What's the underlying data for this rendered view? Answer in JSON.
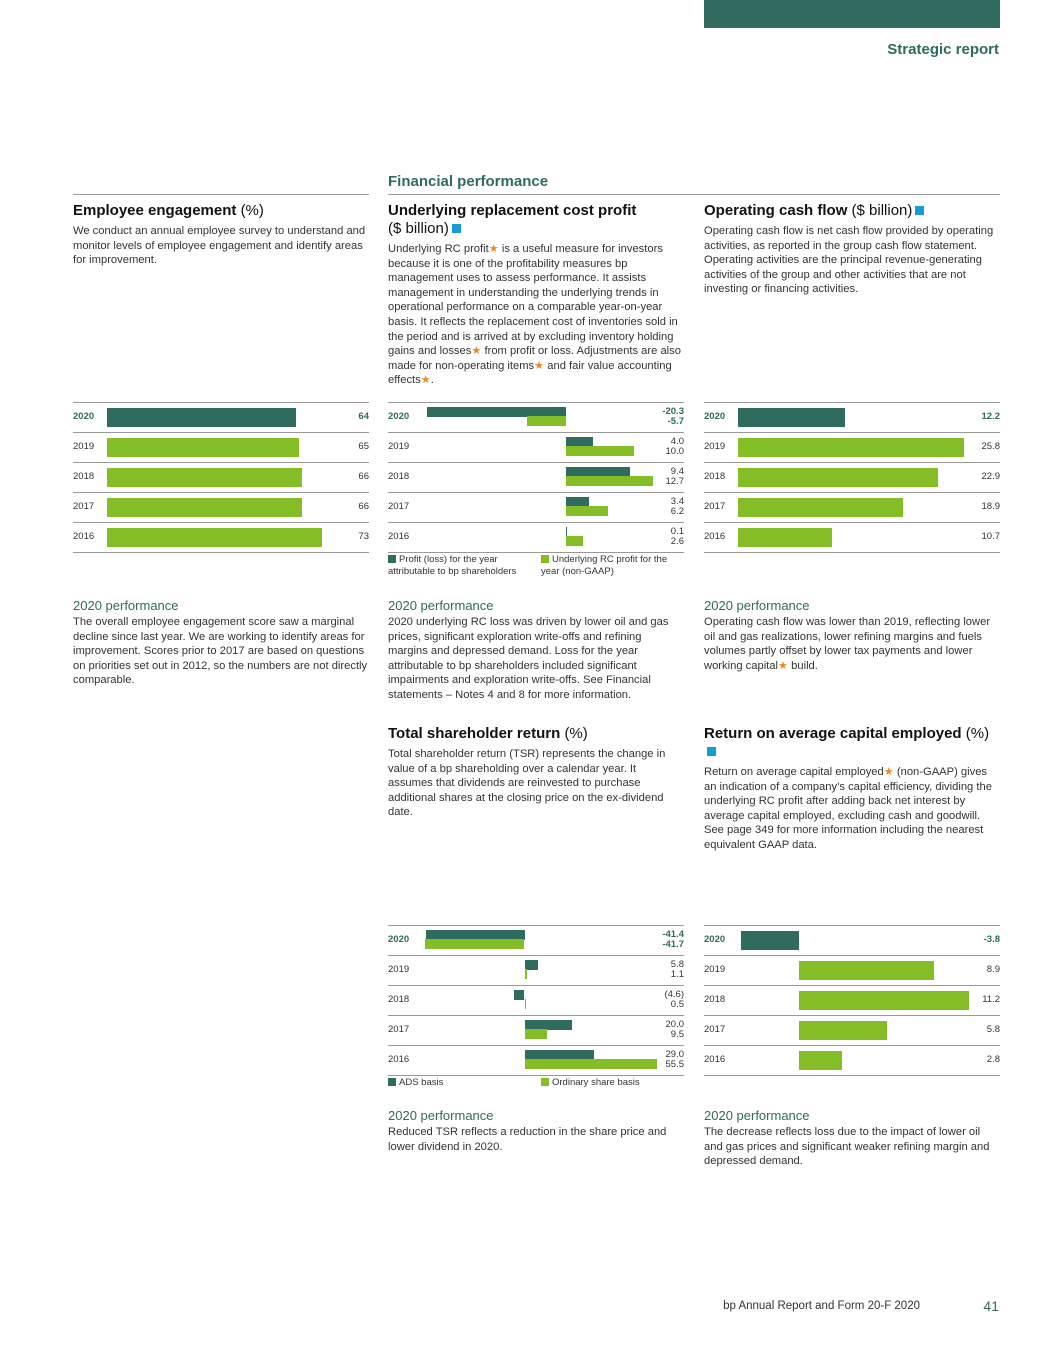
{
  "header": {
    "section": "Strategic report",
    "subsection": "Financial performance"
  },
  "colors": {
    "dark": "#2f6b5e",
    "light": "#84bd26",
    "accent": "#1a9ad6",
    "star": "#e88a1a"
  },
  "employee": {
    "title": "Employee engagement",
    "unit": "(%)",
    "desc": "We conduct an annual employee survey to understand and monitor levels of employee engagement and identify areas for improvement.",
    "perf_title": "2020 performance",
    "perf_text": "The overall employee engagement score saw a marginal decline since last year. We are working to identify areas for improvement. Scores prior to 2017 are based on questions on priorities set out in 2012, so the numbers are not directly comparable."
  },
  "rc": {
    "title": "Underlying replacement cost profit",
    "unit": "($ billion)",
    "desc_1": "Underlying RC profit",
    "desc_2": " is a useful measure for investors because it is one of the profitability measures bp management uses to assess performance. It assists management in understanding the underlying trends in operational performance on a comparable year-on-year basis. It reflects the replacement cost of inventories sold in the period and is arrived at by excluding inventory holding gains and losses",
    "desc_3": " from profit or loss. Adjustments are also made for non-operating items",
    "desc_4": " and fair value accounting effects",
    "desc_5": ".",
    "legend_a": "Profit (loss) for the year attributable to bp shareholders",
    "legend_b": "Underlying RC profit for the year (non-GAAP)",
    "perf_title": "2020 performance",
    "perf_text": "2020 underlying RC loss was driven by lower oil and gas prices, significant exploration write-offs and refining margins and depressed demand. Loss for the year attributable to bp shareholders included significant impairments and exploration write-offs. See Financial statements – Notes 4 and 8 for more information."
  },
  "ocf": {
    "title": "Operating cash flow",
    "unit": "($ billion)",
    "desc": "Operating cash flow is net cash flow provided by operating activities, as reported in the group cash flow statement. Operating activities are the principal revenue-generating activities of the group and other activities that are not investing or financing activities.",
    "perf_title": "2020 performance",
    "perf_text_1": "Operating cash flow was lower than 2019, reflecting lower oil and gas realizations, lower refining margins and fuels volumes partly offset by lower tax payments and lower working capital",
    "perf_text_2": " build."
  },
  "tsr": {
    "title": "Total shareholder return",
    "unit": "(%)",
    "desc": "Total shareholder return (TSR) represents the change in value of a bp shareholding over a calendar year. It assumes that dividends are reinvested to purchase additional shares at the closing price on the ex-dividend date.",
    "legend_a": "ADS basis",
    "legend_b": "Ordinary share basis",
    "perf_title": "2020 performance",
    "perf_text": "Reduced TSR reflects a reduction in the share price and lower dividend in 2020."
  },
  "roace": {
    "title": "Return on average capital employed",
    "unit": "(%)",
    "desc_1": "Return on average capital employed",
    "desc_2": " (non-GAAP) gives an indication of a company’s capital efficiency, dividing the underlying RC profit after adding back net interest by average capital employed, excluding cash and goodwill. See page 349 for more information including the nearest equivalent GAAP data.",
    "perf_title": "2020 performance",
    "perf_text": "The decrease reflects loss due to the impact of lower oil and gas prices and significant weaker refining margin and depressed demand."
  },
  "chart_data": [
    {
      "type": "bar",
      "id": "employee",
      "categories": [
        "2020",
        "2019",
        "2018",
        "2017",
        "2016"
      ],
      "values": [
        64,
        65,
        66,
        66,
        73
      ],
      "labels": [
        "64",
        "65",
        "66",
        "66",
        "73"
      ],
      "xlim": [
        0,
        80
      ]
    },
    {
      "type": "bar",
      "id": "rc",
      "categories": [
        "2020",
        "2019",
        "2018",
        "2017",
        "2016"
      ],
      "series": [
        {
          "name": "Profit (loss) for the year attributable to bp shareholders",
          "values": [
            -20.3,
            4.0,
            9.4,
            3.4,
            0.1
          ],
          "labels": [
            "-20.3",
            "4.0",
            "9.4",
            "3.4",
            "0.1"
          ]
        },
        {
          "name": "Underlying RC profit for the year (non-GAAP)",
          "values": [
            -5.7,
            10.0,
            12.7,
            6.2,
            2.6
          ],
          "labels": [
            "-5.7",
            "10.0",
            "12.7",
            "6.2",
            "2.6"
          ]
        }
      ],
      "xlim": [
        -21,
        13.5
      ]
    },
    {
      "type": "bar",
      "id": "ocf",
      "categories": [
        "2020",
        "2019",
        "2018",
        "2017",
        "2016"
      ],
      "values": [
        12.2,
        25.8,
        22.9,
        18.9,
        10.7
      ],
      "labels": [
        "12.2",
        "25.8",
        "22.9",
        "18.9",
        "10.7"
      ],
      "xlim": [
        0,
        27
      ]
    },
    {
      "type": "bar",
      "id": "tsr",
      "categories": [
        "2020",
        "2019",
        "2018",
        "2017",
        "2016"
      ],
      "series": [
        {
          "name": "ADS basis",
          "values": [
            -41.4,
            5.8,
            -4.6,
            20.0,
            29.0
          ],
          "labels": [
            "-41.4",
            "5.8",
            "(4.6)",
            "20.0",
            "29.0"
          ]
        },
        {
          "name": "Ordinary share basis",
          "values": [
            -41.7,
            1.1,
            0.5,
            9.5,
            55.5
          ],
          "labels": [
            "-41.7",
            "1.1",
            "0.5",
            "9.5",
            "55.5"
          ]
        }
      ],
      "xlim": [
        -43,
        56
      ]
    },
    {
      "type": "bar",
      "id": "roace",
      "categories": [
        "2020",
        "2019",
        "2018",
        "2017",
        "2016"
      ],
      "values": [
        -3.8,
        8.9,
        11.2,
        5.8,
        2.8
      ],
      "labels": [
        "-3.8",
        "8.9",
        "11.2",
        "5.8",
        "2.8"
      ],
      "xlim": [
        -4,
        11.5
      ]
    }
  ],
  "footer": {
    "title": "bp Annual Report and Form 20-F 2020",
    "page": "41"
  }
}
